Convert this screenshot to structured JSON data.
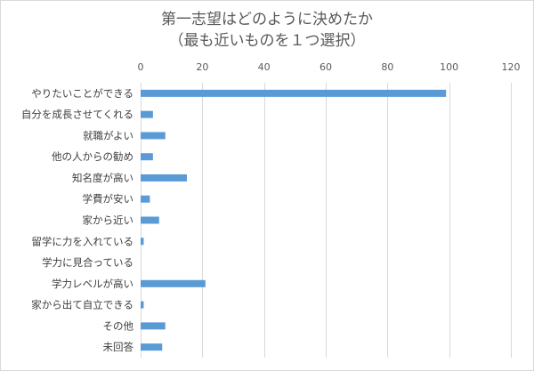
{
  "chart_data": {
    "type": "bar",
    "orientation": "horizontal",
    "title_line1": "第一志望はどのように決めたか",
    "title_line2": "（最も近いものを１つ選択）",
    "categories": [
      "やりたいことができる",
      "自分を成長させてくれる",
      "就職がよい",
      "他の人からの勧め",
      "知名度が高い",
      "学費が安い",
      "家から近い",
      "留学に力を入れている",
      "学力に見合っている",
      "学力レベルが高い",
      "家から出て自立できる",
      "その他",
      "未回答"
    ],
    "values": [
      99,
      4,
      8,
      4,
      15,
      3,
      6,
      1,
      0,
      21,
      1,
      8,
      7
    ],
    "xlim": [
      0,
      120
    ],
    "xticks": [
      0,
      20,
      40,
      60,
      80,
      100,
      120
    ],
    "xaxis_position": "top",
    "grid": true,
    "legend": "none",
    "bar_color": "#5b9bd5",
    "grid_color": "#d9d9d9"
  }
}
